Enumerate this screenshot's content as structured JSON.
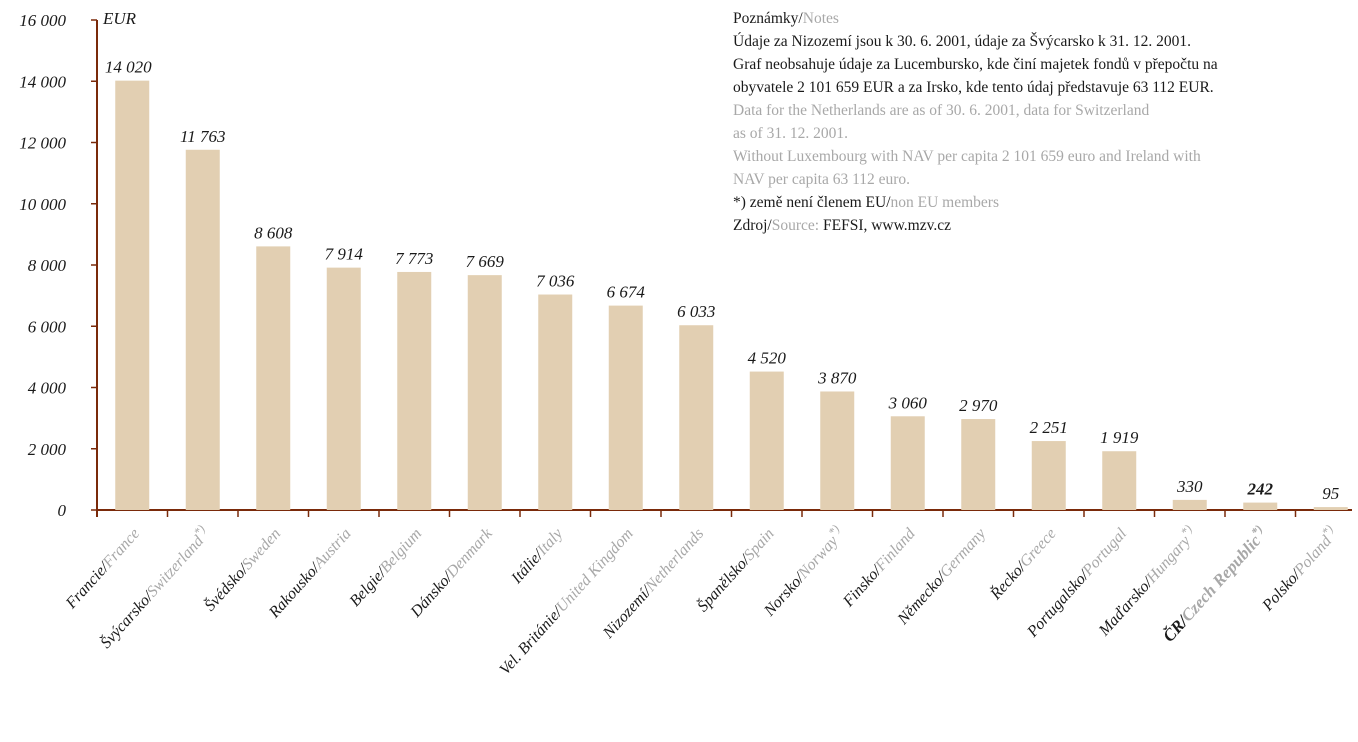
{
  "chart_data": {
    "type": "bar",
    "ylabel": "EUR",
    "ylim": [
      0,
      16000
    ],
    "y_ticks": [
      "0",
      "2 000",
      "4 000",
      "6 000",
      "8 000",
      "10 000",
      "12 000",
      "14 000",
      "16 000"
    ],
    "y_tick_values": [
      0,
      2000,
      4000,
      6000,
      8000,
      10000,
      12000,
      14000,
      16000
    ],
    "bar_color": "#e2cfb2",
    "axis_color": "#7a2a0a",
    "grid": false,
    "categories": [
      {
        "cz": "Francie/",
        "en": "France",
        "star": "",
        "value": 14020,
        "value_label": "14 020",
        "bold": false
      },
      {
        "cz": "Švýcarsko/",
        "en": "Switzerland",
        "star": "*)",
        "value": 11763,
        "value_label": "11 763",
        "bold": false
      },
      {
        "cz": "Švédsko/",
        "en": "Sweden",
        "star": "",
        "value": 8608,
        "value_label": "8 608",
        "bold": false
      },
      {
        "cz": "Rakousko/",
        "en": "Austria",
        "star": "",
        "value": 7914,
        "value_label": "7 914",
        "bold": false
      },
      {
        "cz": "Belgie/",
        "en": "Belgium",
        "star": "",
        "value": 7773,
        "value_label": "7 773",
        "bold": false
      },
      {
        "cz": "Dánsko/",
        "en": "Denmark",
        "star": "",
        "value": 7669,
        "value_label": "7 669",
        "bold": false
      },
      {
        "cz": "Itálie/",
        "en": "Italy",
        "star": "",
        "value": 7036,
        "value_label": "7 036",
        "bold": false
      },
      {
        "cz": "Vel. Británie/",
        "en": "United Kingdom",
        "star": "",
        "value": 6674,
        "value_label": "6 674",
        "bold": false
      },
      {
        "cz": "Nizozemí/",
        "en": "Netherlands",
        "star": "",
        "value": 6033,
        "value_label": "6 033",
        "bold": false
      },
      {
        "cz": "Španělsko/",
        "en": "Spain",
        "star": "",
        "value": 4520,
        "value_label": "4 520",
        "bold": false
      },
      {
        "cz": "Norsko/",
        "en": "Norway",
        "star": "*)",
        "value": 3870,
        "value_label": "3 870",
        "bold": false
      },
      {
        "cz": "Finsko/",
        "en": "Finland",
        "star": "",
        "value": 3060,
        "value_label": "3 060",
        "bold": false
      },
      {
        "cz": "Německo/",
        "en": "Germany",
        "star": "",
        "value": 2970,
        "value_label": "2 970",
        "bold": false
      },
      {
        "cz": "Řecko/",
        "en": "Greece",
        "star": "",
        "value": 2251,
        "value_label": "2 251",
        "bold": false
      },
      {
        "cz": "Portugalsko/",
        "en": "Portugal",
        "star": "",
        "value": 1919,
        "value_label": "1 919",
        "bold": false
      },
      {
        "cz": "Maďarsko/",
        "en": "Hungary",
        "star": "*)",
        "value": 330,
        "value_label": "330",
        "bold": false
      },
      {
        "cz": "ČR/",
        "en": "Czech Republic",
        "star": "*)",
        "value": 242,
        "value_label": "242",
        "bold": true
      },
      {
        "cz": "Polsko/",
        "en": "Poland",
        "star": "*)",
        "value": 95,
        "value_label": "95",
        "bold": false
      }
    ]
  },
  "notes": {
    "heading_cz": "Poznámky/",
    "heading_en": "Notes",
    "cz_line1": "Údaje za Nizozemí jsou k 30. 6. 2001, údaje za Švýcarsko k 31. 12. 2001.",
    "cz_line2": "Graf neobsahuje údaje za Lucembursko, kde činí majetek fondů v přepočtu na",
    "cz_line3": "obyvatele 2 101 659 EUR a za Irsko, kde tento údaj představuje 63 112 EUR.",
    "en_line1": "Data for the Netherlands are as of 30. 6. 2001, data for Switzerland",
    "en_line2": "as of 31. 12. 2001.",
    "en_line3": "Without Luxembourg with NAV per capita 2 101 659 euro and Ireland with",
    "en_line4": "NAV per capita 63 112 euro.",
    "star_cz": "*) země není členem EU/",
    "star_en": "non EU members",
    "source_cz": "Zdroj/",
    "source_en": "Source: ",
    "source_value": "FEFSI, www.mzv.cz"
  }
}
